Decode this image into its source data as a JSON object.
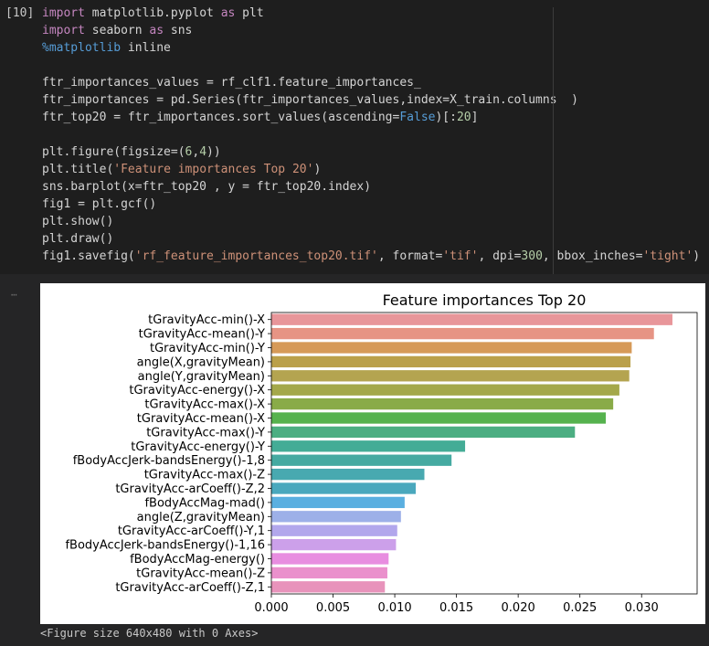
{
  "cell": {
    "prompt": "[10]",
    "lines": [
      [
        {
          "t": "import",
          "c": "kw"
        },
        {
          "t": " matplotlib.pyplot "
        },
        {
          "t": "as",
          "c": "kw"
        },
        {
          "t": " plt"
        }
      ],
      [
        {
          "t": "import",
          "c": "kw"
        },
        {
          "t": " seaborn "
        },
        {
          "t": "as",
          "c": "kw"
        },
        {
          "t": " sns"
        }
      ],
      [
        {
          "t": "%matplotlib",
          "c": "mg"
        },
        {
          "t": " inline"
        }
      ],
      [],
      [
        {
          "t": "ftr_importances_values = rf_clf1.feature_importances_"
        }
      ],
      [
        {
          "t": "ftr_importances = pd.Series(ftr_importances_values,index=X_train.columns  )"
        }
      ],
      [
        {
          "t": "ftr_top20 = ftr_importances.sort_values(ascending="
        },
        {
          "t": "False",
          "c": "bool"
        },
        {
          "t": ")[:"
        },
        {
          "t": "20",
          "c": "num"
        },
        {
          "t": "]"
        }
      ],
      [],
      [
        {
          "t": "plt.figure(figsize=("
        },
        {
          "t": "6",
          "c": "num"
        },
        {
          "t": ","
        },
        {
          "t": "4",
          "c": "num"
        },
        {
          "t": "))"
        }
      ],
      [
        {
          "t": "plt.title("
        },
        {
          "t": "'Feature importances Top 20'",
          "c": "str"
        },
        {
          "t": ")"
        }
      ],
      [
        {
          "t": "sns.barplot(x=ftr_top20 , y = ftr_top20.index)"
        }
      ],
      [
        {
          "t": "fig1 = plt.gcf()"
        }
      ],
      [
        {
          "t": "plt.show()"
        }
      ],
      [
        {
          "t": "plt.draw()"
        }
      ],
      [
        {
          "t": "fig1.savefig("
        },
        {
          "t": "'rf_feature_importances_top20.tif'",
          "c": "str"
        },
        {
          "t": ", format="
        },
        {
          "t": "'tif'",
          "c": "str"
        },
        {
          "t": ", dpi="
        },
        {
          "t": "300",
          "c": "num"
        },
        {
          "t": ", bbox_inches="
        },
        {
          "t": "'tight'",
          "c": "str"
        },
        {
          "t": ")"
        }
      ]
    ]
  },
  "output": {
    "figure_caption": "<Figure size 640x480 with 0 Axes>"
  },
  "chart_data": {
    "type": "bar",
    "orientation": "horizontal",
    "title": "Feature importances Top 20",
    "xlabel": "",
    "ylabel": "",
    "xlim": [
      0,
      0.0345
    ],
    "xticks": [
      "0.000",
      "0.005",
      "0.010",
      "0.015",
      "0.020",
      "0.025",
      "0.030"
    ],
    "tick_values": [
      0,
      0.005,
      0.01,
      0.015,
      0.02,
      0.025,
      0.03
    ],
    "categories": [
      "tGravityAcc-min()-X",
      "tGravityAcc-mean()-Y",
      "tGravityAcc-min()-Y",
      "angle(X,gravityMean)",
      "angle(Y,gravityMean)",
      "tGravityAcc-energy()-X",
      "tGravityAcc-max()-X",
      "tGravityAcc-mean()-X",
      "tGravityAcc-max()-Y",
      "tGravityAcc-energy()-Y",
      "fBodyAccJerk-bandsEnergy()-1,8",
      "tGravityAcc-max()-Z",
      "tGravityAcc-arCoeff()-Z,2",
      "fBodyAccMag-mad()",
      "angle(Z,gravityMean)",
      "tGravityAcc-arCoeff()-Y,1",
      "fBodyAccJerk-bandsEnergy()-1,16",
      "fBodyAccMag-energy()",
      "tGravityAcc-mean()-Z",
      "tGravityAcc-arCoeff()-Z,1"
    ],
    "values": [
      0.0325,
      0.031,
      0.0292,
      0.0291,
      0.029,
      0.0282,
      0.0277,
      0.0271,
      0.0246,
      0.0157,
      0.0146,
      0.0124,
      0.0117,
      0.0108,
      0.0105,
      0.0102,
      0.0101,
      0.0095,
      0.0094,
      0.0092
    ],
    "colors": [
      "#e8969a",
      "#e69484",
      "#d69a58",
      "#baa04a",
      "#b4a450",
      "#a4a84a",
      "#89ab48",
      "#56b24e",
      "#4cae82",
      "#44ac96",
      "#45aaa1",
      "#48a9b0",
      "#4aa8bd",
      "#5aafe0",
      "#9db0e8",
      "#b2a7ec",
      "#cca0ea",
      "#e88de0",
      "#ea90cc",
      "#e893bb"
    ]
  }
}
